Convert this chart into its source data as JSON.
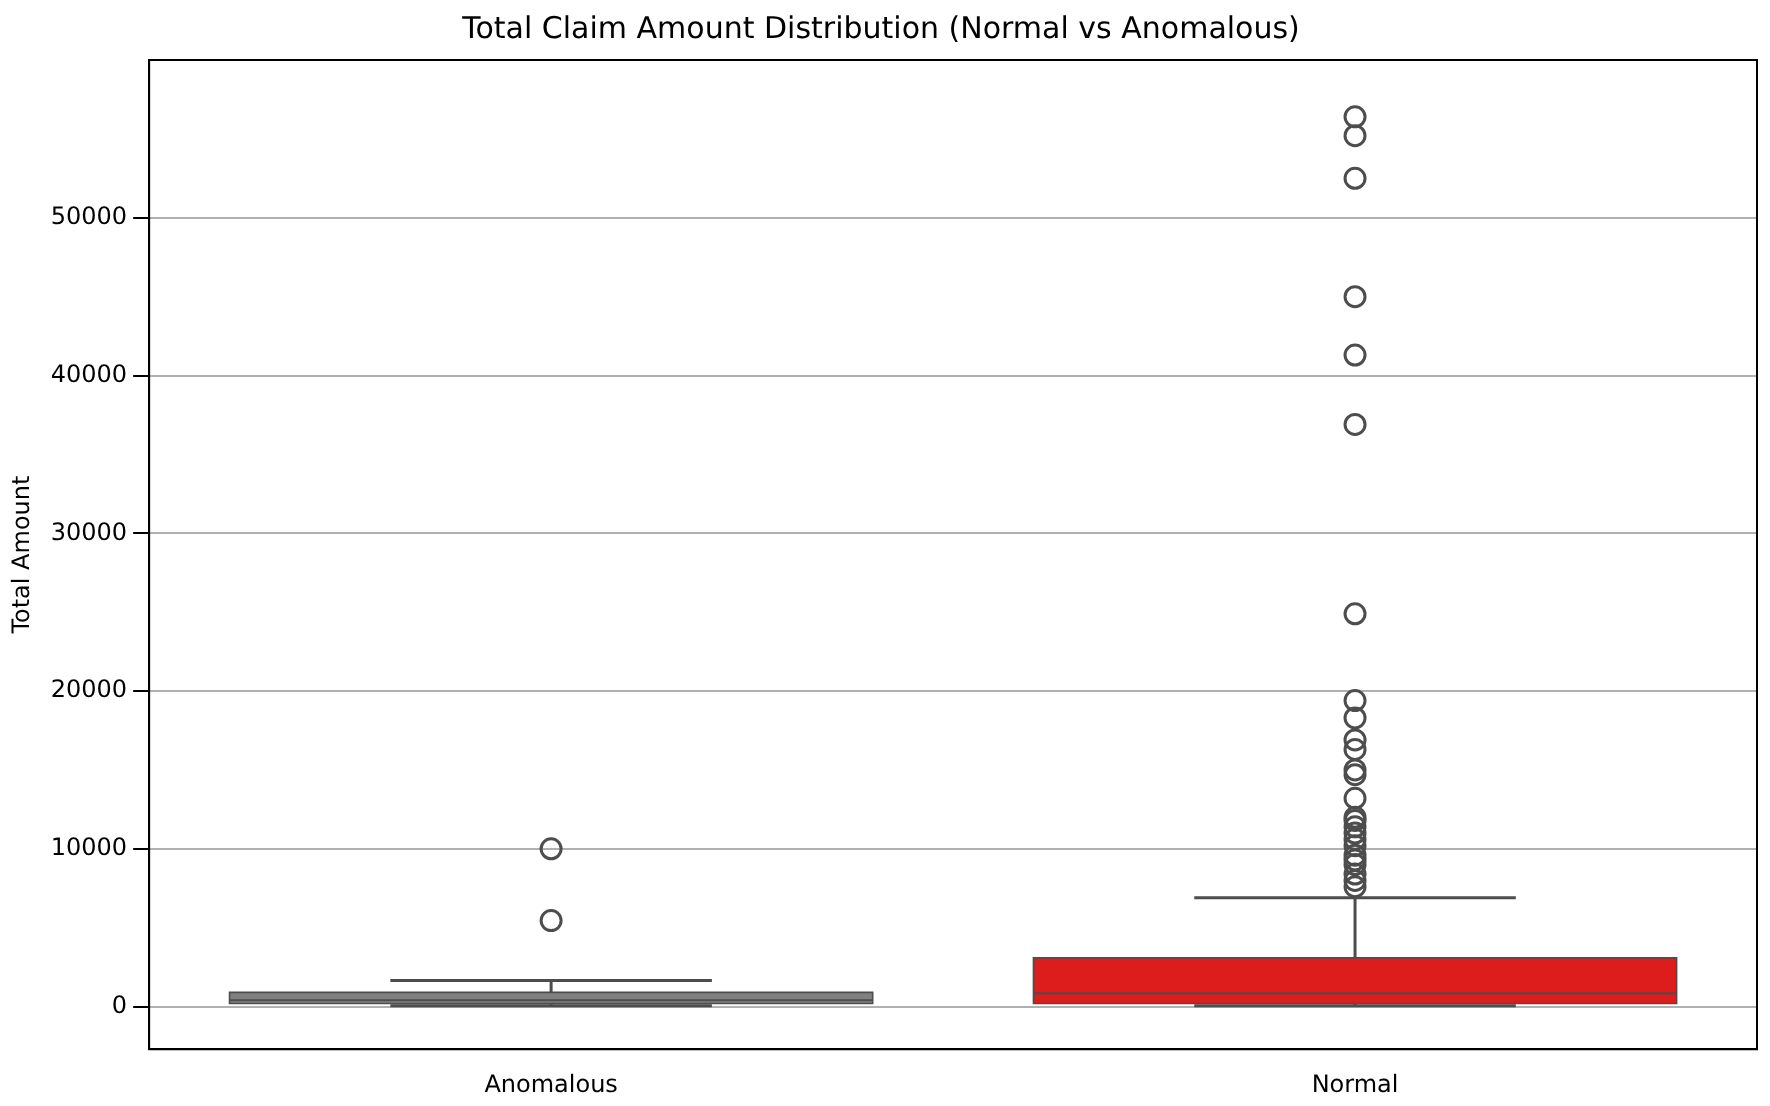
{
  "chart_data": {
    "type": "box",
    "title": "Total Claim Amount Distribution (Normal vs Anomalous)",
    "ylabel": "Total Amount",
    "categories": [
      "Anomalous",
      "Normal"
    ],
    "colors": [
      "#808080",
      "#dd1c1c"
    ],
    "boxes": [
      {
        "low": 50,
        "q1": 200,
        "median": 400,
        "q3": 900,
        "high": 1650,
        "outliers": [
          5450,
          10000
        ]
      },
      {
        "low": 50,
        "q1": 200,
        "median": 850,
        "q3": 3100,
        "high": 6900,
        "outliers": [
          7600,
          8000,
          8400,
          9000,
          9300,
          9600,
          10200,
          10600,
          11000,
          11400,
          11800,
          12000,
          13200,
          14700,
          15000,
          16300,
          16900,
          18300,
          19400,
          24900,
          36900,
          41300,
          45000,
          52500,
          55200,
          56400
        ]
      }
    ],
    "ylim": [
      -2700,
      60000
    ],
    "yticks": [
      0,
      10000,
      20000,
      30000,
      40000,
      50000
    ],
    "grid": "y",
    "legend": false
  }
}
